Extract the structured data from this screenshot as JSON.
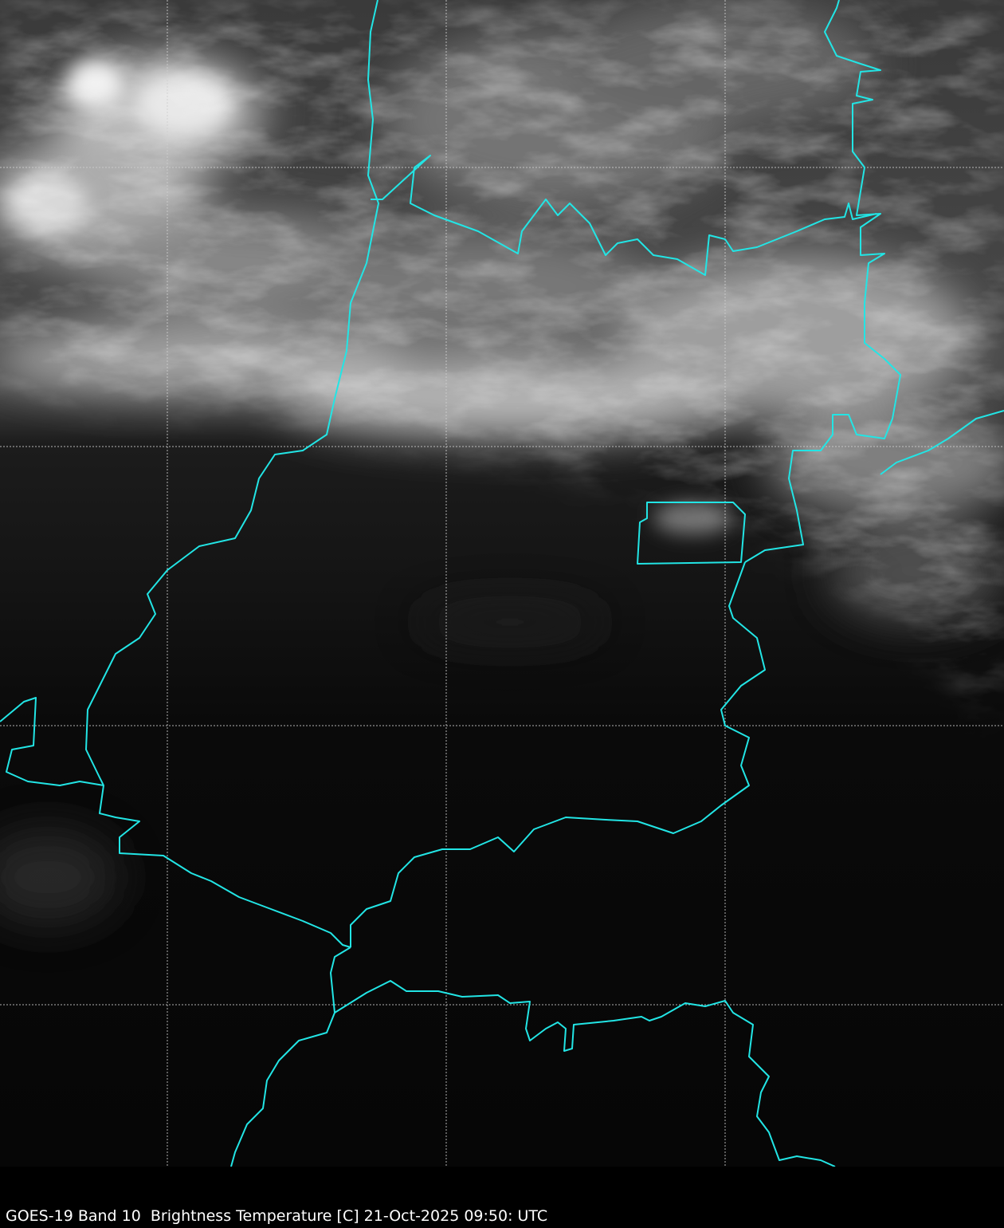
{
  "caption": "GOES-19 Band 10  Brightness Temperature [C] 21-Oct-2025 09:50: UTC",
  "colors": {
    "background": "#000000",
    "border_line": "#22e5e5",
    "gridline": "#cfcfcf",
    "caption_text": "#ffffff"
  },
  "image": {
    "type": "satellite infrared brightness temperature, grayscale",
    "overlays": [
      "political borders",
      "lat/lon gridlines"
    ]
  }
}
